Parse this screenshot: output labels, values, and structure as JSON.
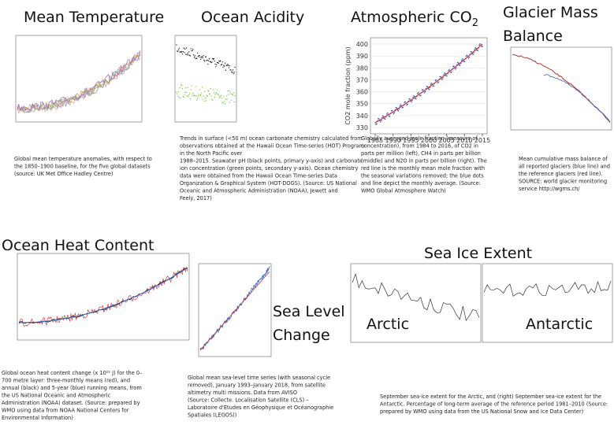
{
  "panels": [
    {
      "title": "Mean Temperature",
      "caption": [
        "Global mean temperature anomalies, with respect to",
        "the 1850–1900 baseline, for the five global datasets",
        "(source: UK Met Office Hadley Centre)"
      ]
    },
    {
      "title": "Ocean Acidity",
      "caption": [
        "Trends in surface (<50 m) ocean carbonate chemistry calculated from",
        "observations obtained at the Hawaii Ocean Time-series (HOT) Program",
        "in the North Pacific over",
        "1988–2015. Seawater pH (black points, primary y-axis) and carbonate",
        "ion concentration (green points, secondary y-axis). Ocean chemistry",
        "data were obtained from the Hawaii Ocean Time-series Data",
        "Organization & Graphical System (HOT-DOGS). (Source: US National",
        "Oceanic and Atmospheric Administration (NOAA), Jewett and",
        "Feely, 2017)"
      ]
    },
    {
      "title": "Atmospheric CO",
      "title_subscript": "2",
      "caption": [
        "Globally averaged mole fraction (measure of",
        "concentration), from 1984 to 2016, of CO2 in",
        "parts per million (left), CH4 in parts per billion",
        "(middle) and N2O in parts per billion (right). The",
        "red line is the monthly mean mole fraction with",
        "the seasonal variations removed; the blue dots",
        "and line depict the monthly average. (Source:",
        "WMO Global Atmosphere Watch)"
      ],
      "chart": {
        "y_label": "CO2 mole fraction (ppm)",
        "yticks": [
          400,
          390,
          380,
          370,
          360,
          350,
          340,
          330
        ],
        "xticks": [
          1985,
          1990,
          1995,
          2000,
          2005,
          2010,
          2015
        ]
      }
    },
    {
      "title": [
        "Glacier Mass",
        "Balance"
      ],
      "caption": [
        "Mean cumulative mass balance of",
        "all reported glaciers (blue line) and",
        "the reference glaciers (red line).",
        "SOURCE: world glacier monitoring",
        "service http://wgms.ch/"
      ]
    },
    {
      "title": "Ocean Heat Content",
      "caption": [
        "Global ocean heat content change (x 10²² J) for the 0–",
        "700 metre layer: three-monthly means (red), and",
        "annual (black) and 5-year (blue) running means, from",
        "the US National Oceanic and Atmospheric",
        "Administration (NOAA) dataset. (Source: prepared by",
        "WMO using data from NOAA National Centers for",
        "Environmental Information)"
      ]
    },
    {
      "title": [
        "Sea Level",
        "Change"
      ],
      "caption": [
        "Global mean sea-level time series (with seasonal cycle",
        "removed), January 1993–January 2018, from satellite",
        "altimetry multi missions. Data from AVISO",
        "(Source: Collecte. Localisation Satellite (CLS) –",
        "Laboratoire d'Etudes en Géophysique et Océanographie",
        "Spatiales (LEGOS))"
      ]
    },
    {
      "title": "Sea Ice Extent",
      "labels": [
        "Arctic",
        "Antarctic"
      ],
      "caption": [
        "September sea-ice extent for the Arctic, and (right) September sea-ice extent for the",
        "Antarctic. Percentage of long-term average of the reference period 1981–2010 (Source:",
        "prepared by WMO using data from the US National Snow and Ice Data Center)"
      ]
    }
  ]
}
